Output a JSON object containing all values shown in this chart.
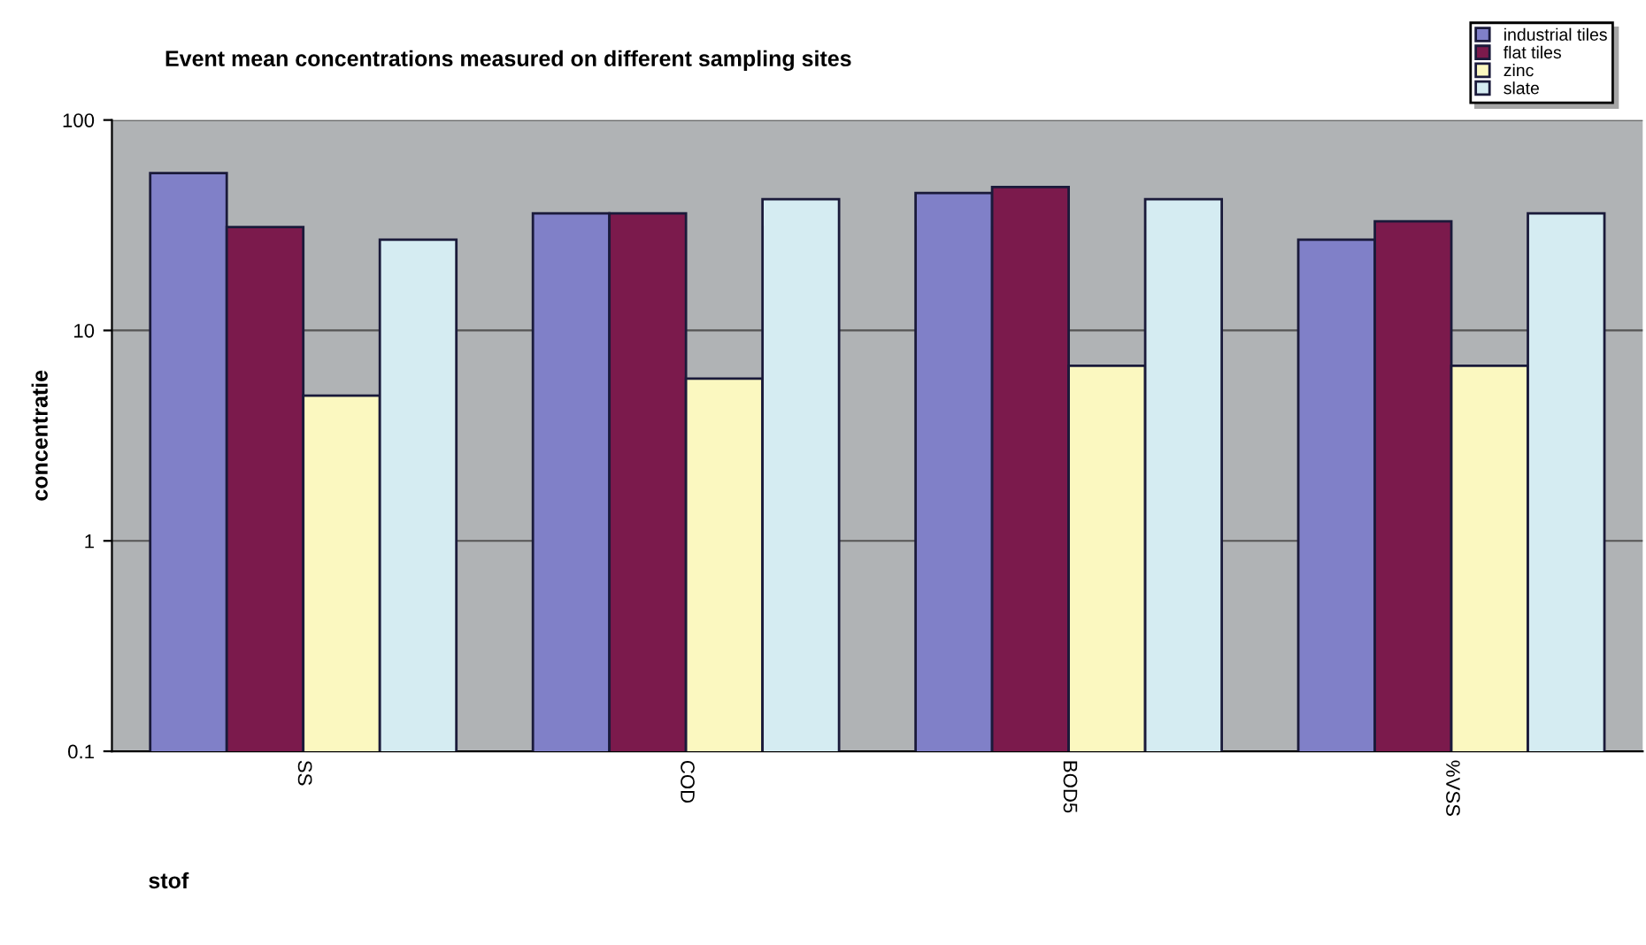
{
  "chart_data": {
    "type": "bar",
    "title": "Event mean concentrations measured on different sampling sites",
    "xlabel": "stof",
    "ylabel": "concentratie",
    "categories": [
      "SS",
      "COD",
      "BOD5",
      "%VSS"
    ],
    "series": [
      {
        "name": "industrial tiles",
        "color": "#8080c8",
        "values": [
          56,
          36,
          45,
          27
        ]
      },
      {
        "name": "flat tiles",
        "color": "#7b1a4c",
        "values": [
          31,
          36,
          48,
          33
        ]
      },
      {
        "name": "zinc",
        "color": "#fbf8c0",
        "values": [
          4.9,
          5.9,
          6.8,
          6.8
        ]
      },
      {
        "name": "slate",
        "color": "#d5ecf2",
        "values": [
          27,
          42,
          42,
          36
        ]
      }
    ],
    "log": true,
    "ylim": [
      0.1,
      100
    ],
    "yticks": [
      0.1,
      1,
      10,
      100
    ],
    "grid": "y",
    "legend": "top right"
  }
}
